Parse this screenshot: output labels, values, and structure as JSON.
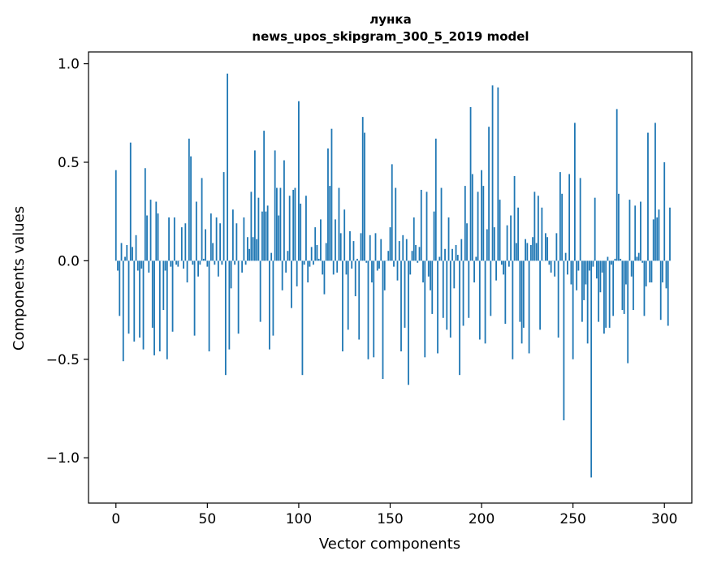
{
  "chart_data": {
    "type": "bar",
    "title": "лунка",
    "subtitle": "news_upos_skipgram_300_5_2019 model",
    "xlabel": "Vector components",
    "ylabel": "Components values",
    "xlim": [
      -15,
      315
    ],
    "ylim": [
      -1.23,
      1.06
    ],
    "xticks": [
      0,
      50,
      100,
      150,
      200,
      250,
      300
    ],
    "xtick_labels": [
      "0",
      "50",
      "100",
      "150",
      "200",
      "250",
      "300"
    ],
    "yticks": [
      -1.0,
      -0.5,
      0.0,
      0.5,
      1.0
    ],
    "ytick_labels": [
      "−1.0",
      "−0.5",
      "0.0",
      "0.5",
      "1.0"
    ],
    "bar_color": "#1f77b4",
    "bar_width": 0.8,
    "values": [
      0.46,
      -0.05,
      -0.28,
      0.09,
      -0.51,
      0.02,
      0.08,
      -0.37,
      0.6,
      0.07,
      -0.41,
      0.13,
      -0.05,
      -0.39,
      -0.04,
      -0.45,
      0.47,
      0.23,
      -0.06,
      0.31,
      -0.34,
      -0.48,
      0.3,
      0.24,
      -0.46,
      0.0,
      -0.25,
      -0.05,
      -0.5,
      0.22,
      -0.03,
      -0.36,
      0.22,
      -0.02,
      -0.03,
      0.0,
      0.17,
      -0.04,
      0.19,
      -0.11,
      0.62,
      0.53,
      -0.02,
      -0.38,
      0.3,
      -0.08,
      -0.02,
      0.42,
      0.01,
      0.16,
      -0.03,
      -0.46,
      0.24,
      0.09,
      -0.02,
      0.22,
      -0.08,
      0.19,
      -0.02,
      0.45,
      -0.58,
      0.95,
      -0.45,
      -0.14,
      0.26,
      -0.02,
      0.19,
      -0.37,
      0.0,
      -0.06,
      0.22,
      -0.02,
      0.12,
      0.06,
      0.35,
      0.12,
      0.56,
      0.11,
      0.32,
      -0.31,
      0.25,
      0.66,
      0.25,
      0.28,
      -0.45,
      0.04,
      -0.38,
      0.56,
      0.37,
      0.23,
      0.37,
      -0.15,
      0.51,
      -0.06,
      0.05,
      0.33,
      -0.24,
      0.36,
      0.37,
      -0.13,
      0.81,
      0.29,
      -0.58,
      -0.02,
      0.33,
      -0.11,
      -0.03,
      0.07,
      -0.02,
      0.17,
      0.08,
      0.01,
      0.21,
      -0.07,
      -0.17,
      0.09,
      0.57,
      0.38,
      0.67,
      -0.07,
      0.21,
      -0.06,
      0.37,
      0.14,
      -0.46,
      0.26,
      -0.07,
      -0.35,
      0.15,
      -0.04,
      0.1,
      -0.18,
      0.01,
      -0.4,
      0.14,
      0.73,
      0.65,
      -0.01,
      -0.5,
      0.13,
      -0.11,
      -0.49,
      0.14,
      -0.05,
      -0.04,
      0.11,
      -0.6,
      -0.15,
      0.0,
      0.05,
      0.17,
      0.49,
      -0.03,
      0.37,
      -0.1,
      0.1,
      -0.46,
      0.13,
      -0.34,
      0.11,
      -0.63,
      -0.07,
      0.05,
      0.22,
      0.08,
      -0.01,
      0.07,
      0.36,
      -0.11,
      -0.49,
      0.35,
      -0.08,
      -0.15,
      -0.27,
      0.25,
      0.62,
      -0.47,
      0.02,
      0.37,
      -0.29,
      0.06,
      -0.35,
      0.22,
      -0.39,
      0.06,
      -0.14,
      0.08,
      0.03,
      -0.58,
      0.11,
      -0.33,
      0.38,
      0.19,
      -0.29,
      0.78,
      0.44,
      -0.11,
      0.02,
      0.35,
      -0.4,
      0.46,
      0.38,
      -0.42,
      0.16,
      0.68,
      -0.28,
      0.89,
      0.17,
      -0.1,
      0.88,
      0.31,
      -0.02,
      -0.07,
      -0.32,
      0.18,
      -0.03,
      0.23,
      -0.5,
      0.43,
      0.09,
      0.27,
      -0.31,
      -0.42,
      -0.34,
      0.11,
      0.09,
      -0.47,
      0.08,
      0.12,
      0.35,
      0.09,
      0.33,
      -0.35,
      0.27,
      0.0,
      0.14,
      0.12,
      -0.02,
      -0.06,
      0.0,
      -0.08,
      0.14,
      -0.39,
      0.45,
      0.34,
      -0.81,
      0.04,
      -0.07,
      0.44,
      -0.12,
      -0.5,
      0.7,
      -0.15,
      -0.05,
      0.42,
      -0.31,
      -0.2,
      -0.12,
      -0.42,
      -0.05,
      -1.1,
      -0.03,
      0.32,
      -0.09,
      -0.31,
      -0.16,
      -0.06,
      -0.37,
      -0.34,
      0.02,
      -0.34,
      -0.02,
      -0.28,
      0.01,
      0.77,
      0.34,
      0.01,
      -0.25,
      -0.27,
      -0.12,
      -0.52,
      0.31,
      -0.08,
      -0.25,
      0.28,
      0.02,
      0.04,
      0.3,
      -0.01,
      -0.28,
      -0.13,
      0.65,
      -0.11,
      -0.11,
      0.21,
      0.7,
      0.22,
      0.26,
      -0.3,
      -0.11,
      0.5,
      -0.14,
      -0.33,
      0.27
    ]
  }
}
